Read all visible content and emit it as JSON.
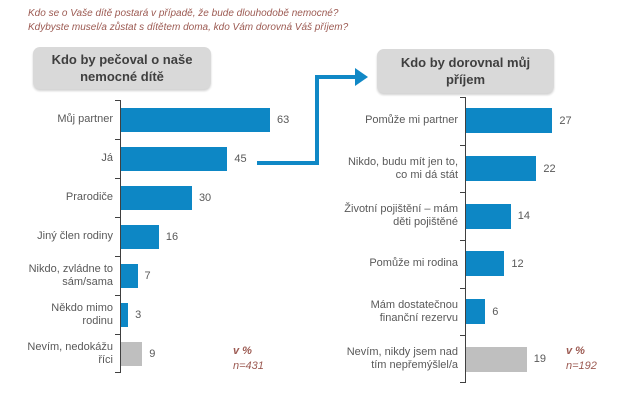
{
  "page": {
    "question_line1": "Kdo se o Vaše dítě postará v případě, že bude dlouhodobě nemocné?",
    "question_line2": "Kdybyste musel/a zůstat s dítětem doma, kdo Vám dorovná Váš příjem?"
  },
  "colors": {
    "bar_blue": "#0d87c5",
    "bar_gray": "#bfbfbf",
    "arrow_blue": "#1088c6",
    "title_maroon": "#9c5a52",
    "label_gray": "#595959",
    "axis_gray": "#404040",
    "header_bg": "#d9d9d9",
    "header_text": "#3f3f3f"
  },
  "chart_data": [
    {
      "type": "bar",
      "orientation": "horizontal",
      "title": "Kdo by pečoval o naše nemocné dítě",
      "unit": "%",
      "categories": [
        "Můj partner",
        "Já",
        "Prarodiče",
        "Jiný člen rodiny",
        "Nikdo, zvládne to sám/sama",
        "Někdo mimo rodinu",
        "Nevím, nedokážu říci"
      ],
      "values": [
        63,
        45,
        30,
        16,
        7,
        3,
        9
      ],
      "bar_colors": [
        "#0d87c5",
        "#0d87c5",
        "#0d87c5",
        "#0d87c5",
        "#0d87c5",
        "#0d87c5",
        "#bfbfbf"
      ],
      "xlim": [
        0,
        70
      ],
      "grid": false,
      "legend": false,
      "note_percent": "v %",
      "note_n": "n=431"
    },
    {
      "type": "bar",
      "orientation": "horizontal",
      "title": "Kdo by dorovnal můj příjem",
      "unit": "%",
      "categories": [
        "Pomůže mi partner",
        "Nikdo, budu mít jen to, co mi dá stát",
        "Životní pojištění – mám děti pojištěné",
        "Pomůže mi rodina",
        "Mám dostatečnou finanční rezervu",
        "Nevím, nikdy jsem nad tím nepřemýšlel/a"
      ],
      "values": [
        27,
        22,
        14,
        12,
        6,
        19
      ],
      "bar_colors": [
        "#0d87c5",
        "#0d87c5",
        "#0d87c5",
        "#0d87c5",
        "#0d87c5",
        "#bfbfbf"
      ],
      "xlim": [
        0,
        30
      ],
      "grid": false,
      "legend": false,
      "note_percent": "v %",
      "note_n": "n=192"
    }
  ]
}
